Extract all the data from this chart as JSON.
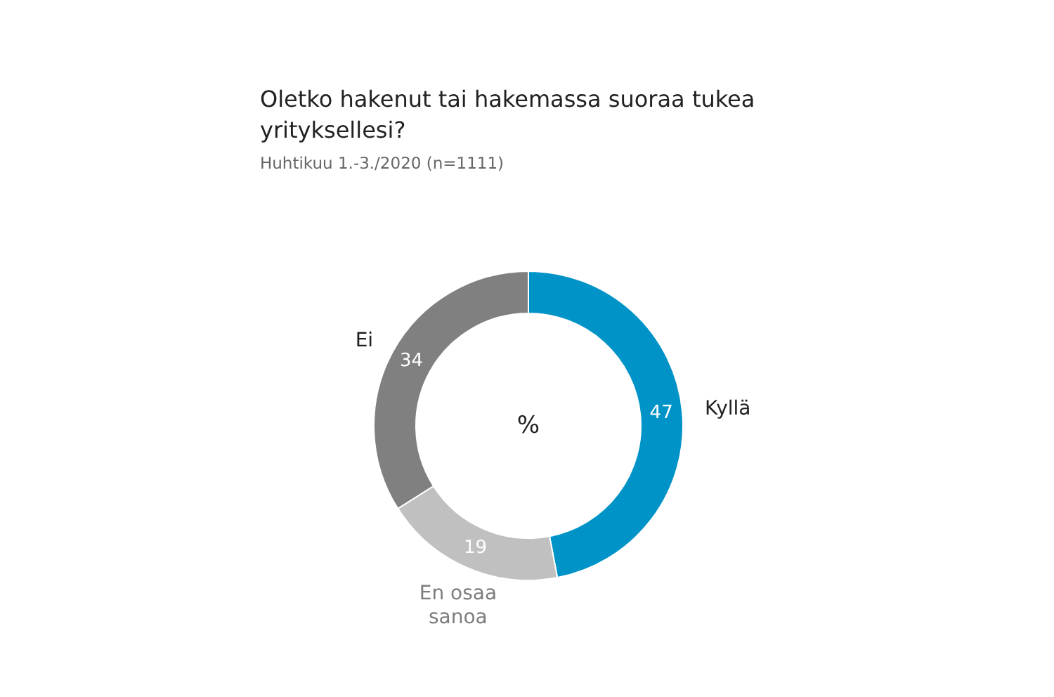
{
  "chart_data": {
    "type": "donut",
    "title": "Oletko hakenut tai hakemassa suoraa tukea yrityksellesi?",
    "subtitle": "Huhtikuu 1.-3./2020 (n=1111)",
    "categories": [
      "Kyllä",
      "En osaa sanoa",
      "Ei"
    ],
    "values": [
      47,
      19,
      34
    ],
    "colors": [
      "#0093c8",
      "#c0c0c0",
      "#808080"
    ],
    "data_labels": true,
    "annotations": [
      "%"
    ]
  }
}
